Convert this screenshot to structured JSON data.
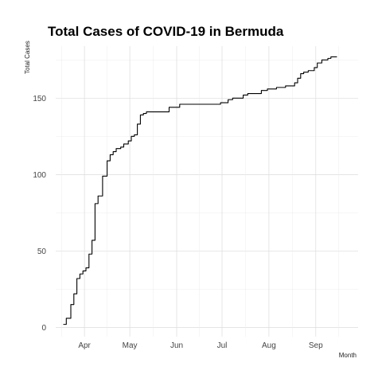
{
  "chart_data": {
    "type": "line",
    "title": "Total Cases of COVID-19 in Bermuda",
    "xlabel": "Month",
    "ylabel": "Total Cases",
    "x_type": "date",
    "xlim": [
      "2020-03-13",
      "2020-09-29"
    ],
    "ylim": [
      -6,
      184
    ],
    "x_ticks": [
      {
        "date": "2020-04-01",
        "label": "Apr"
      },
      {
        "date": "2020-05-01",
        "label": "May"
      },
      {
        "date": "2020-06-01",
        "label": "Jun"
      },
      {
        "date": "2020-07-01",
        "label": "Jul"
      },
      {
        "date": "2020-08-01",
        "label": "Aug"
      },
      {
        "date": "2020-09-01",
        "label": "Sep"
      }
    ],
    "y_ticks": [
      0,
      50,
      100,
      150
    ],
    "grid": true,
    "step": true,
    "series": [
      {
        "color": "#000000",
        "points": [
          [
            "2020-03-18",
            2
          ],
          [
            "2020-03-20",
            6
          ],
          [
            "2020-03-23",
            15
          ],
          [
            "2020-03-25",
            22
          ],
          [
            "2020-03-27",
            32
          ],
          [
            "2020-03-29",
            35
          ],
          [
            "2020-03-31",
            37
          ],
          [
            "2020-04-02",
            39
          ],
          [
            "2020-04-04",
            48
          ],
          [
            "2020-04-06",
            57
          ],
          [
            "2020-04-08",
            81
          ],
          [
            "2020-04-10",
            86
          ],
          [
            "2020-04-13",
            99
          ],
          [
            "2020-04-16",
            109
          ],
          [
            "2020-04-18",
            113
          ],
          [
            "2020-04-20",
            115
          ],
          [
            "2020-04-22",
            117
          ],
          [
            "2020-04-25",
            118
          ],
          [
            "2020-04-27",
            120
          ],
          [
            "2020-04-30",
            122
          ],
          [
            "2020-05-02",
            125
          ],
          [
            "2020-05-04",
            126
          ],
          [
            "2020-05-06",
            133
          ],
          [
            "2020-05-08",
            139
          ],
          [
            "2020-05-10",
            140
          ],
          [
            "2020-05-12",
            141
          ],
          [
            "2020-05-27",
            144
          ],
          [
            "2020-06-03",
            146
          ],
          [
            "2020-06-30",
            147
          ],
          [
            "2020-07-05",
            149
          ],
          [
            "2020-07-08",
            150
          ],
          [
            "2020-07-15",
            152
          ],
          [
            "2020-07-18",
            153
          ],
          [
            "2020-07-27",
            155
          ],
          [
            "2020-07-31",
            156
          ],
          [
            "2020-08-06",
            157
          ],
          [
            "2020-08-12",
            158
          ],
          [
            "2020-08-18",
            160
          ],
          [
            "2020-08-20",
            163
          ],
          [
            "2020-08-22",
            166
          ],
          [
            "2020-08-24",
            167
          ],
          [
            "2020-08-27",
            168
          ],
          [
            "2020-08-31",
            170
          ],
          [
            "2020-09-02",
            173
          ],
          [
            "2020-09-05",
            175
          ],
          [
            "2020-09-09",
            176
          ],
          [
            "2020-09-11",
            177
          ],
          [
            "2020-09-15",
            177
          ]
        ]
      }
    ]
  }
}
